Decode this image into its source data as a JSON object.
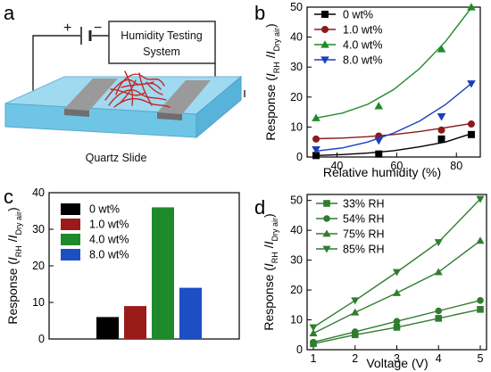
{
  "panels": {
    "a": {
      "letter": "a",
      "box_label_line1": "Humidity Testing",
      "box_label_line2": "System",
      "substrate_label": "Quartz Slide",
      "plus_sign": "+",
      "minus_sign": "−"
    },
    "b": {
      "letter": "b"
    },
    "c": {
      "letter": "c"
    },
    "d": {
      "letter": "d"
    }
  },
  "chart_data": [
    {
      "panel": "b",
      "type": "scatter",
      "xlabel": "Relative humidity (%)",
      "ylabel": {
        "main": "Response (",
        "i1": "I",
        "s1": "RH",
        "mid": " /",
        "i2": "I",
        "s2": "Dry air",
        "end": ")"
      },
      "xlim": [
        30,
        88
      ],
      "ylim": [
        0,
        50
      ],
      "xticks": [
        40,
        60,
        80
      ],
      "yticks": [
        0,
        10,
        20,
        30,
        40,
        50
      ],
      "legend_position": "top-left",
      "series": [
        {
          "name": "0 wt%",
          "color": "#000000",
          "marker": "square",
          "x": [
            33,
            54,
            75,
            85
          ],
          "y": [
            0.5,
            1.0,
            6.0,
            7.5
          ],
          "fit": [
            0.5,
            0.8,
            1.3,
            2.1,
            3.4,
            5.0,
            7.8
          ]
        },
        {
          "name": "1.0 wt%",
          "color": "#8b1a1a",
          "marker": "circle",
          "x": [
            33,
            54,
            75,
            85
          ],
          "y": [
            6.0,
            7.0,
            9.0,
            11.0
          ],
          "fit": [
            6.1,
            6.3,
            6.8,
            7.5,
            8.5,
            9.8,
            11.2
          ]
        },
        {
          "name": "4.0 wt%",
          "color": "#1f8a2b",
          "marker": "triangle-up",
          "x": [
            33,
            54,
            75,
            85
          ],
          "y": [
            13.0,
            17.0,
            36.0,
            50.0
          ],
          "fit": [
            13.0,
            14.6,
            17.6,
            22.5,
            29.5,
            38.5,
            49.8
          ]
        },
        {
          "name": "8.0 wt%",
          "color": "#1c3fbf",
          "marker": "triangle-down",
          "x": [
            33,
            54,
            75,
            85
          ],
          "y": [
            2.5,
            5.5,
            13.5,
            24.5
          ],
          "fit": [
            2.0,
            3.0,
            5.0,
            8.0,
            12.0,
            17.5,
            24.5
          ]
        }
      ]
    },
    {
      "panel": "c",
      "type": "bar",
      "xlabel": "",
      "ylabel": {
        "main": "Response (",
        "i1": "I",
        "s1": "RH",
        "mid": " /",
        "i2": "I",
        "s2": "Dry air",
        "end": ")"
      },
      "ylim": [
        0,
        40
      ],
      "yticks": [
        0,
        10,
        20,
        30,
        40
      ],
      "categories": [
        "0 wt%",
        "1.0 wt%",
        "4.0 wt%",
        "8.0 wt%"
      ],
      "values": [
        6.0,
        9.0,
        36.0,
        14.0
      ],
      "colors": [
        "#000000",
        "#9b1b1b",
        "#1f8a2b",
        "#1d4fc4"
      ],
      "legend_position": "top-left"
    },
    {
      "panel": "d",
      "type": "line",
      "xlabel": "Voltage (V)",
      "ylabel": {
        "main": "Response (",
        "i1": "I",
        "s1": "RH",
        "mid": " /",
        "i2": "I",
        "s2": "Dry air",
        "end": ")"
      },
      "xlim": [
        0.85,
        5.15
      ],
      "ylim": [
        0,
        52
      ],
      "xticks": [
        1,
        2,
        3,
        4,
        5
      ],
      "yticks": [
        0,
        10,
        20,
        30,
        40,
        50
      ],
      "legend_position": "top-left",
      "x": [
        1,
        2,
        3,
        4,
        5
      ],
      "color": "#2f7d2f",
      "series": [
        {
          "name": "33% RH",
          "marker": "square",
          "values": [
            2.0,
            5.0,
            7.5,
            10.5,
            13.5
          ]
        },
        {
          "name": "54% RH",
          "marker": "circle",
          "values": [
            2.5,
            6.0,
            9.5,
            13.0,
            16.5
          ]
        },
        {
          "name": "75% RH",
          "marker": "triangle-up",
          "values": [
            5.5,
            12.5,
            19.0,
            26.0,
            36.5
          ]
        },
        {
          "name": "85% RH",
          "marker": "triangle-down",
          "values": [
            7.5,
            16.5,
            26.0,
            36.0,
            50.5
          ]
        }
      ]
    }
  ]
}
